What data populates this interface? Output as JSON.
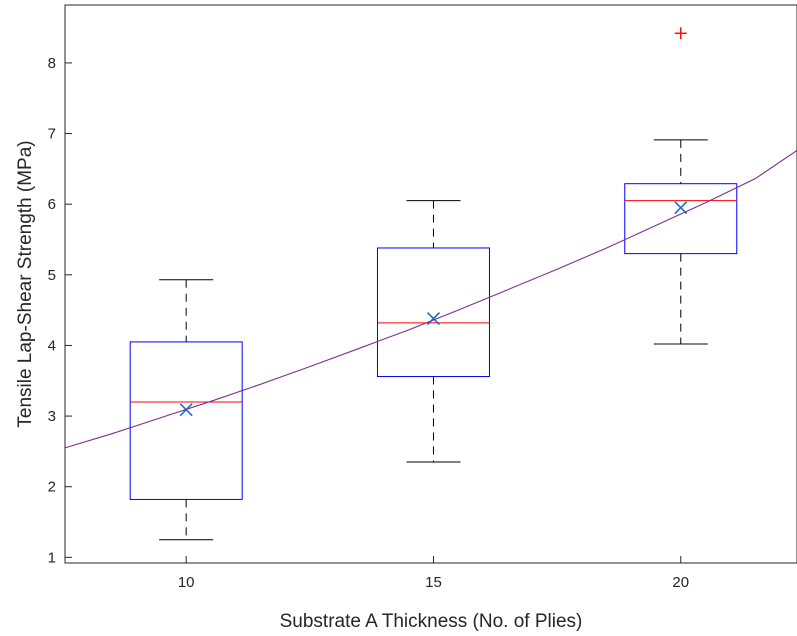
{
  "chart_data": {
    "type": "box",
    "xlabel": "Substrate A Thickness (No. of Plies)",
    "ylabel": "Tensile Lap-Shear Strength (MPa)",
    "xlim": [
      7.55,
      22.35
    ],
    "ylim": [
      0.92,
      8.82
    ],
    "xticks": [
      10,
      15,
      20
    ],
    "yticks": [
      1,
      2,
      3,
      4,
      5,
      6,
      7,
      8
    ],
    "grid": false,
    "boxes": [
      {
        "x": 10,
        "whisker_low": 1.25,
        "q1": 1.82,
        "median": 3.2,
        "q3": 4.05,
        "whisker_high": 4.93,
        "mean": 3.09,
        "outliers": []
      },
      {
        "x": 15,
        "whisker_low": 2.35,
        "q1": 3.56,
        "median": 4.32,
        "q3": 5.38,
        "whisker_high": 6.05,
        "mean": 4.38,
        "outliers": []
      },
      {
        "x": 20,
        "whisker_low": 4.02,
        "q1": 5.3,
        "median": 6.05,
        "q3": 6.29,
        "whisker_high": 6.91,
        "mean": 5.95,
        "outliers": [
          8.42
        ]
      }
    ],
    "fit_curve": {
      "x": [
        7.55,
        8.5,
        9.5,
        10.5,
        11.5,
        12.5,
        13.5,
        14.5,
        15.5,
        16.5,
        17.5,
        18.5,
        19.5,
        20.5,
        21.5,
        22.35
      ],
      "y": [
        2.55,
        2.75,
        2.98,
        3.21,
        3.45,
        3.7,
        3.96,
        4.22,
        4.5,
        4.79,
        5.08,
        5.38,
        5.7,
        6.02,
        6.36,
        6.76
      ]
    },
    "colors": {
      "box": "#0000ff",
      "median": "#ff0000",
      "whisker": "#000000",
      "mean_marker": "#1f6fbf",
      "outlier": "#ff0000",
      "fit_curve": "#7e2f8e",
      "axes": "#262626"
    }
  }
}
